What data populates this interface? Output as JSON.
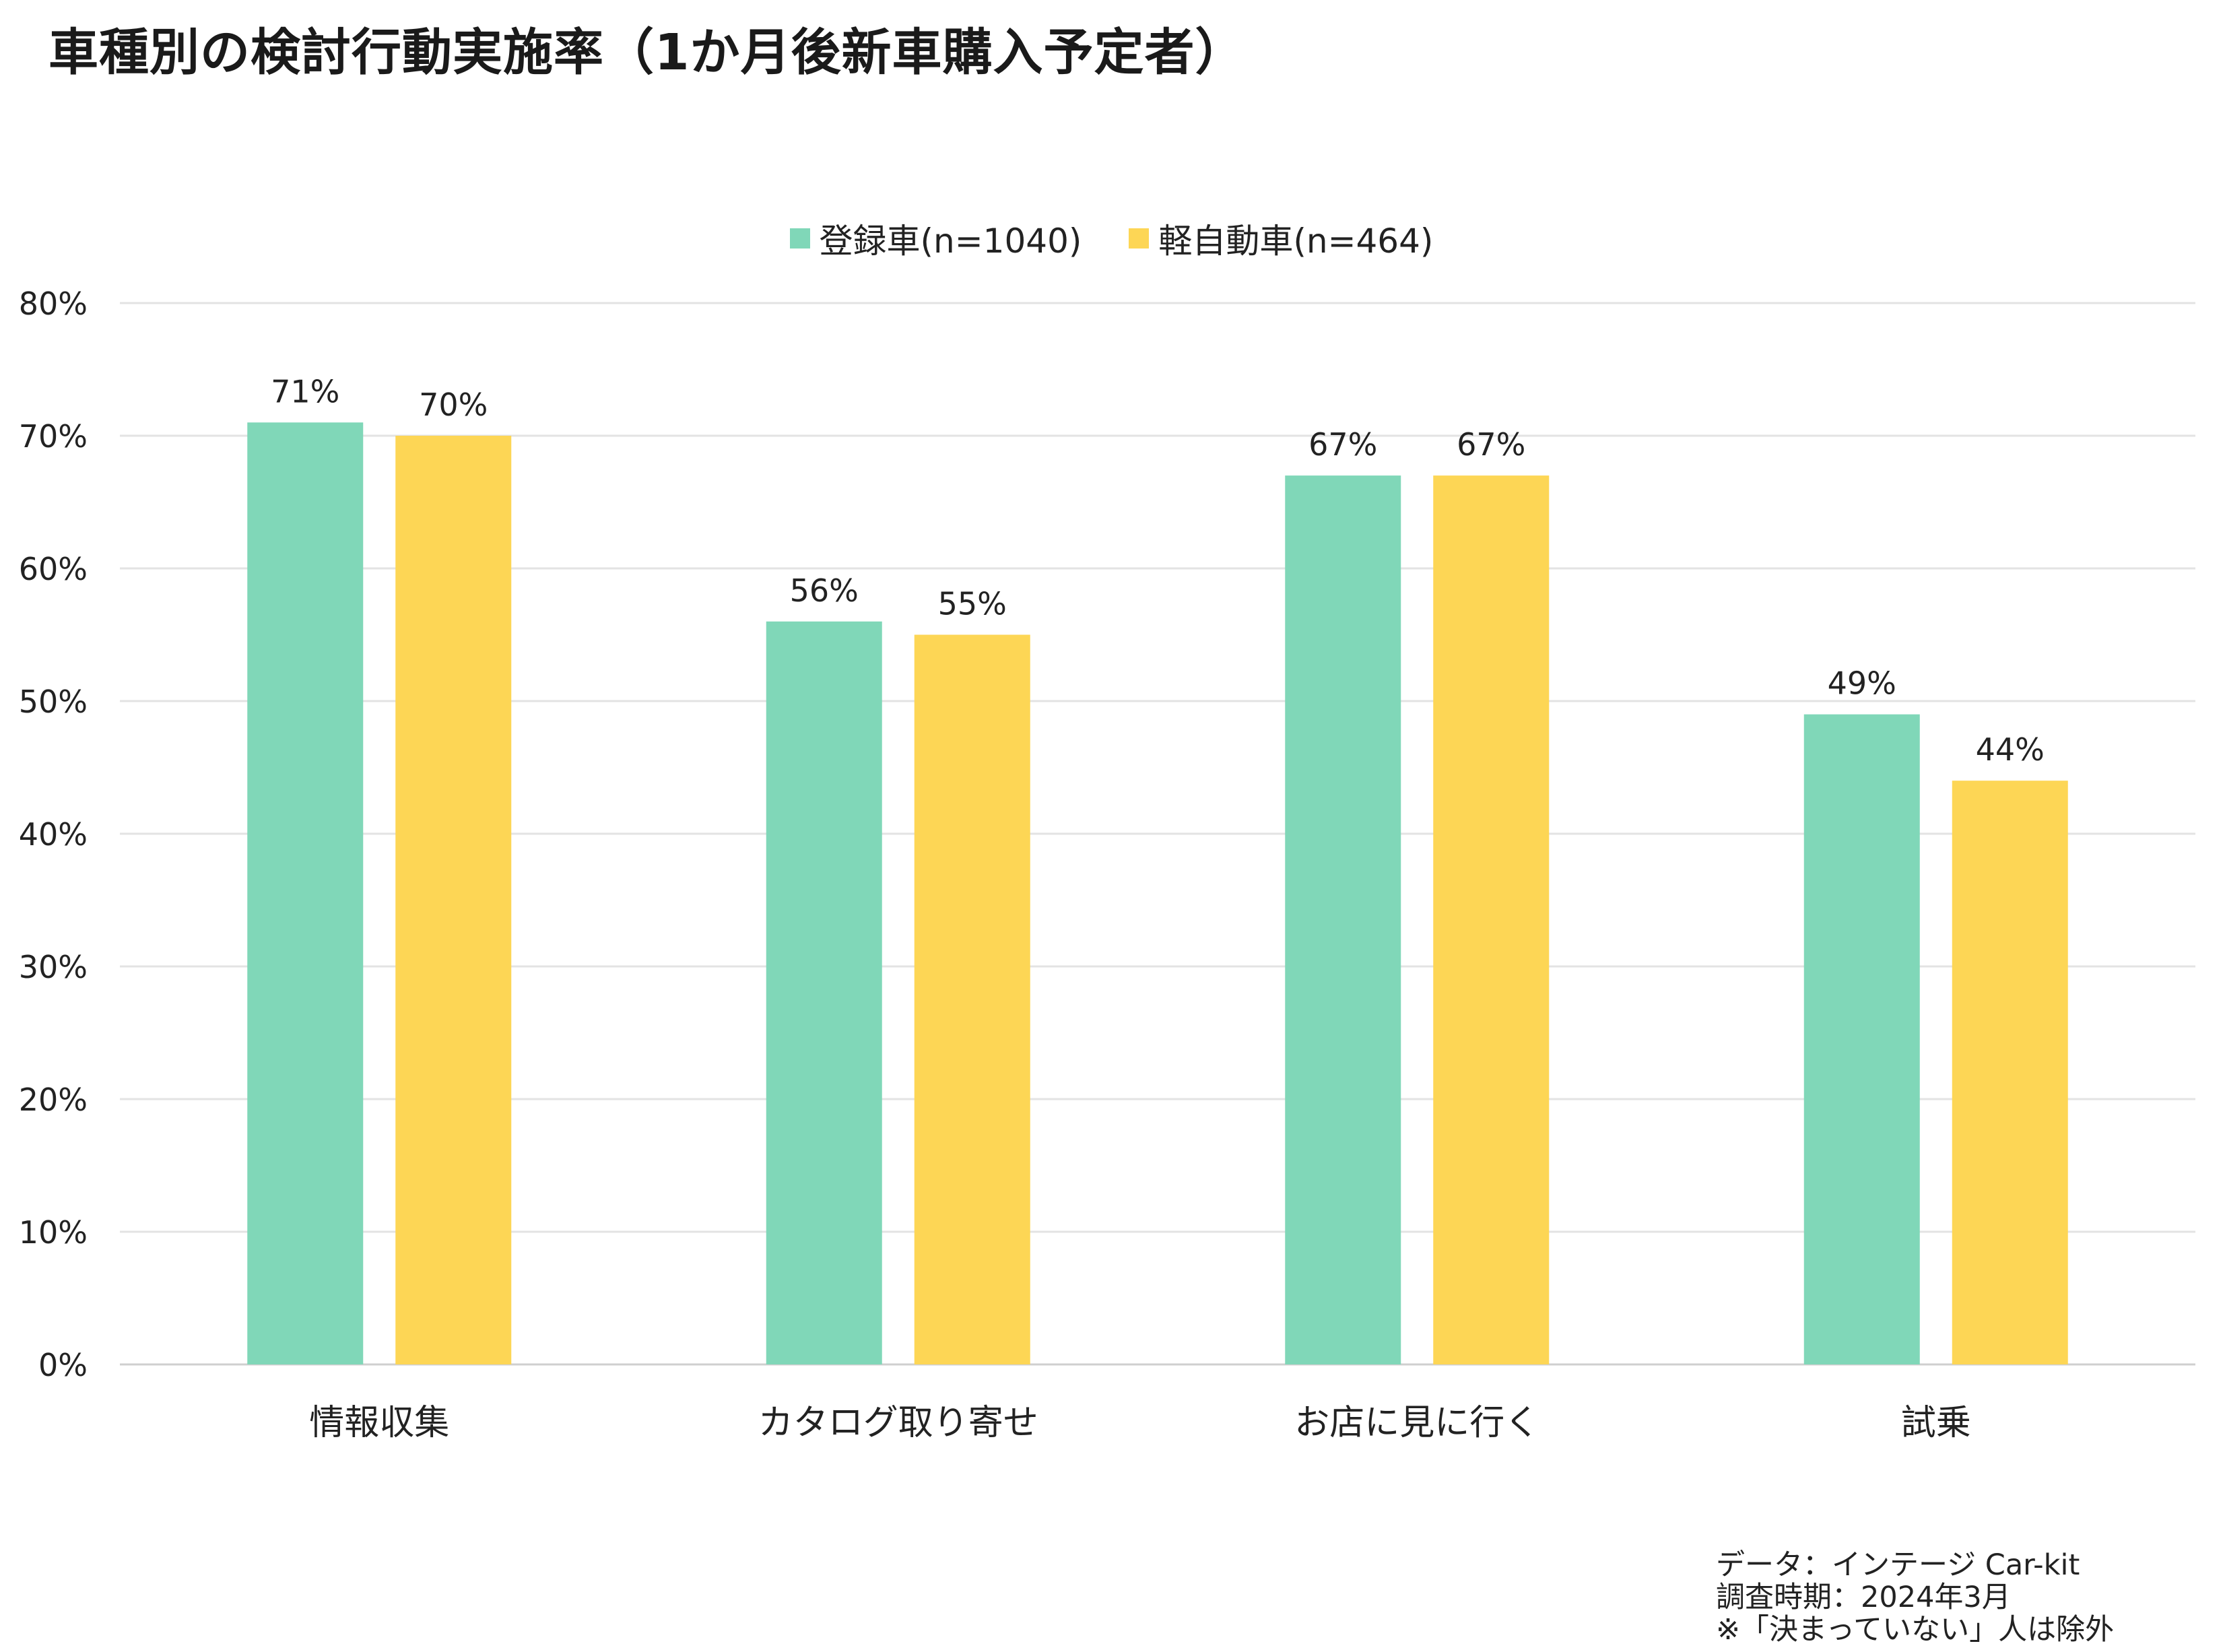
{
  "chart_data": {
    "type": "bar",
    "title": "車種別の検討行動実施率（1か月後新車購入予定者）",
    "categories": [
      "情報収集",
      "カタログ取り寄せ",
      "お店に見に行く",
      "試乗"
    ],
    "series": [
      {
        "name": "登録車(n=1040)",
        "color": "#80d7b8",
        "values": [
          71,
          56,
          67,
          49
        ],
        "labels": [
          "71%",
          "56%",
          "67%",
          "49%"
        ]
      },
      {
        "name": "軽自動車(n=464)",
        "color": "#fdd655",
        "values": [
          70,
          55,
          67,
          44
        ],
        "labels": [
          "70%",
          "55%",
          "67%",
          "44%"
        ]
      }
    ],
    "y_ticks": [
      "0%",
      "10%",
      "20%",
      "30%",
      "40%",
      "50%",
      "60%",
      "70%",
      "80%"
    ],
    "ylim": [
      0,
      80
    ],
    "grid": true,
    "legend_position": "top-center"
  },
  "notes": [
    "データ：インテージ Car-kit",
    "調査時期：2024年3月",
    "※「決まっていない」人は除外"
  ]
}
